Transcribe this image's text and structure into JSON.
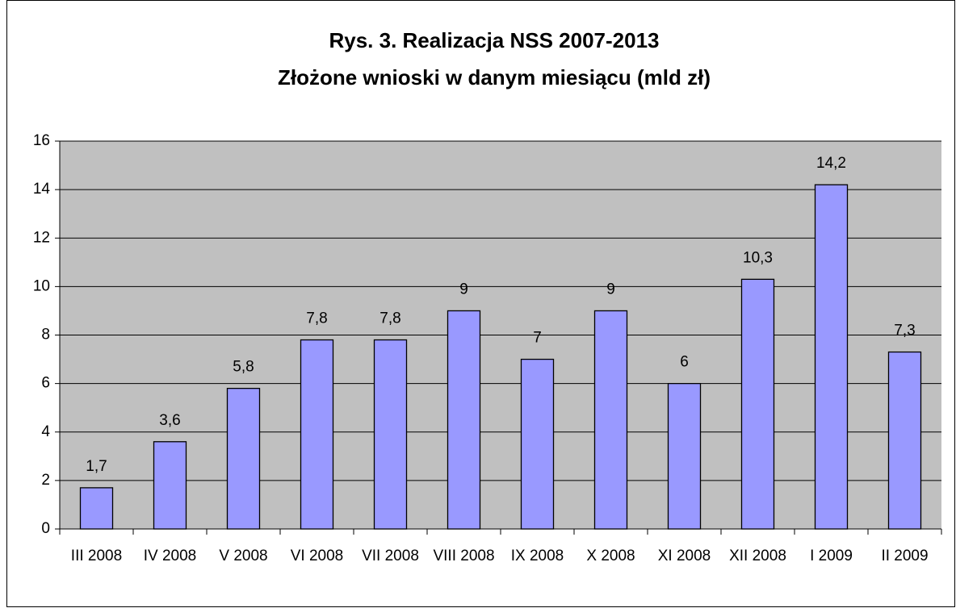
{
  "chart_data": {
    "type": "bar",
    "title": "Rys. 3.  Realizacja NSS 2007-2013",
    "subtitle": "Złożone wnioski w danym miesiącu (mld zł)",
    "categories": [
      "III 2008",
      "IV 2008",
      "V 2008",
      "VI 2008",
      "VII 2008",
      "VIII 2008",
      "IX 2008",
      "X 2008",
      "XI 2008",
      "XII 2008",
      "I 2009",
      "II 2009"
    ],
    "values": [
      1.7,
      3.6,
      5.8,
      7.8,
      7.8,
      9,
      7,
      9,
      6,
      10.3,
      14.2,
      7.3
    ],
    "value_labels": [
      "1,7",
      "3,6",
      "5,8",
      "7,8",
      "7,8",
      "9",
      "7",
      "9",
      "6",
      "10,3",
      "14,2",
      "7,3"
    ],
    "color": "#9999ff",
    "ylim": [
      0,
      16
    ],
    "yticks": [
      0,
      2,
      4,
      6,
      8,
      10,
      12,
      14,
      16
    ],
    "grid": true
  }
}
